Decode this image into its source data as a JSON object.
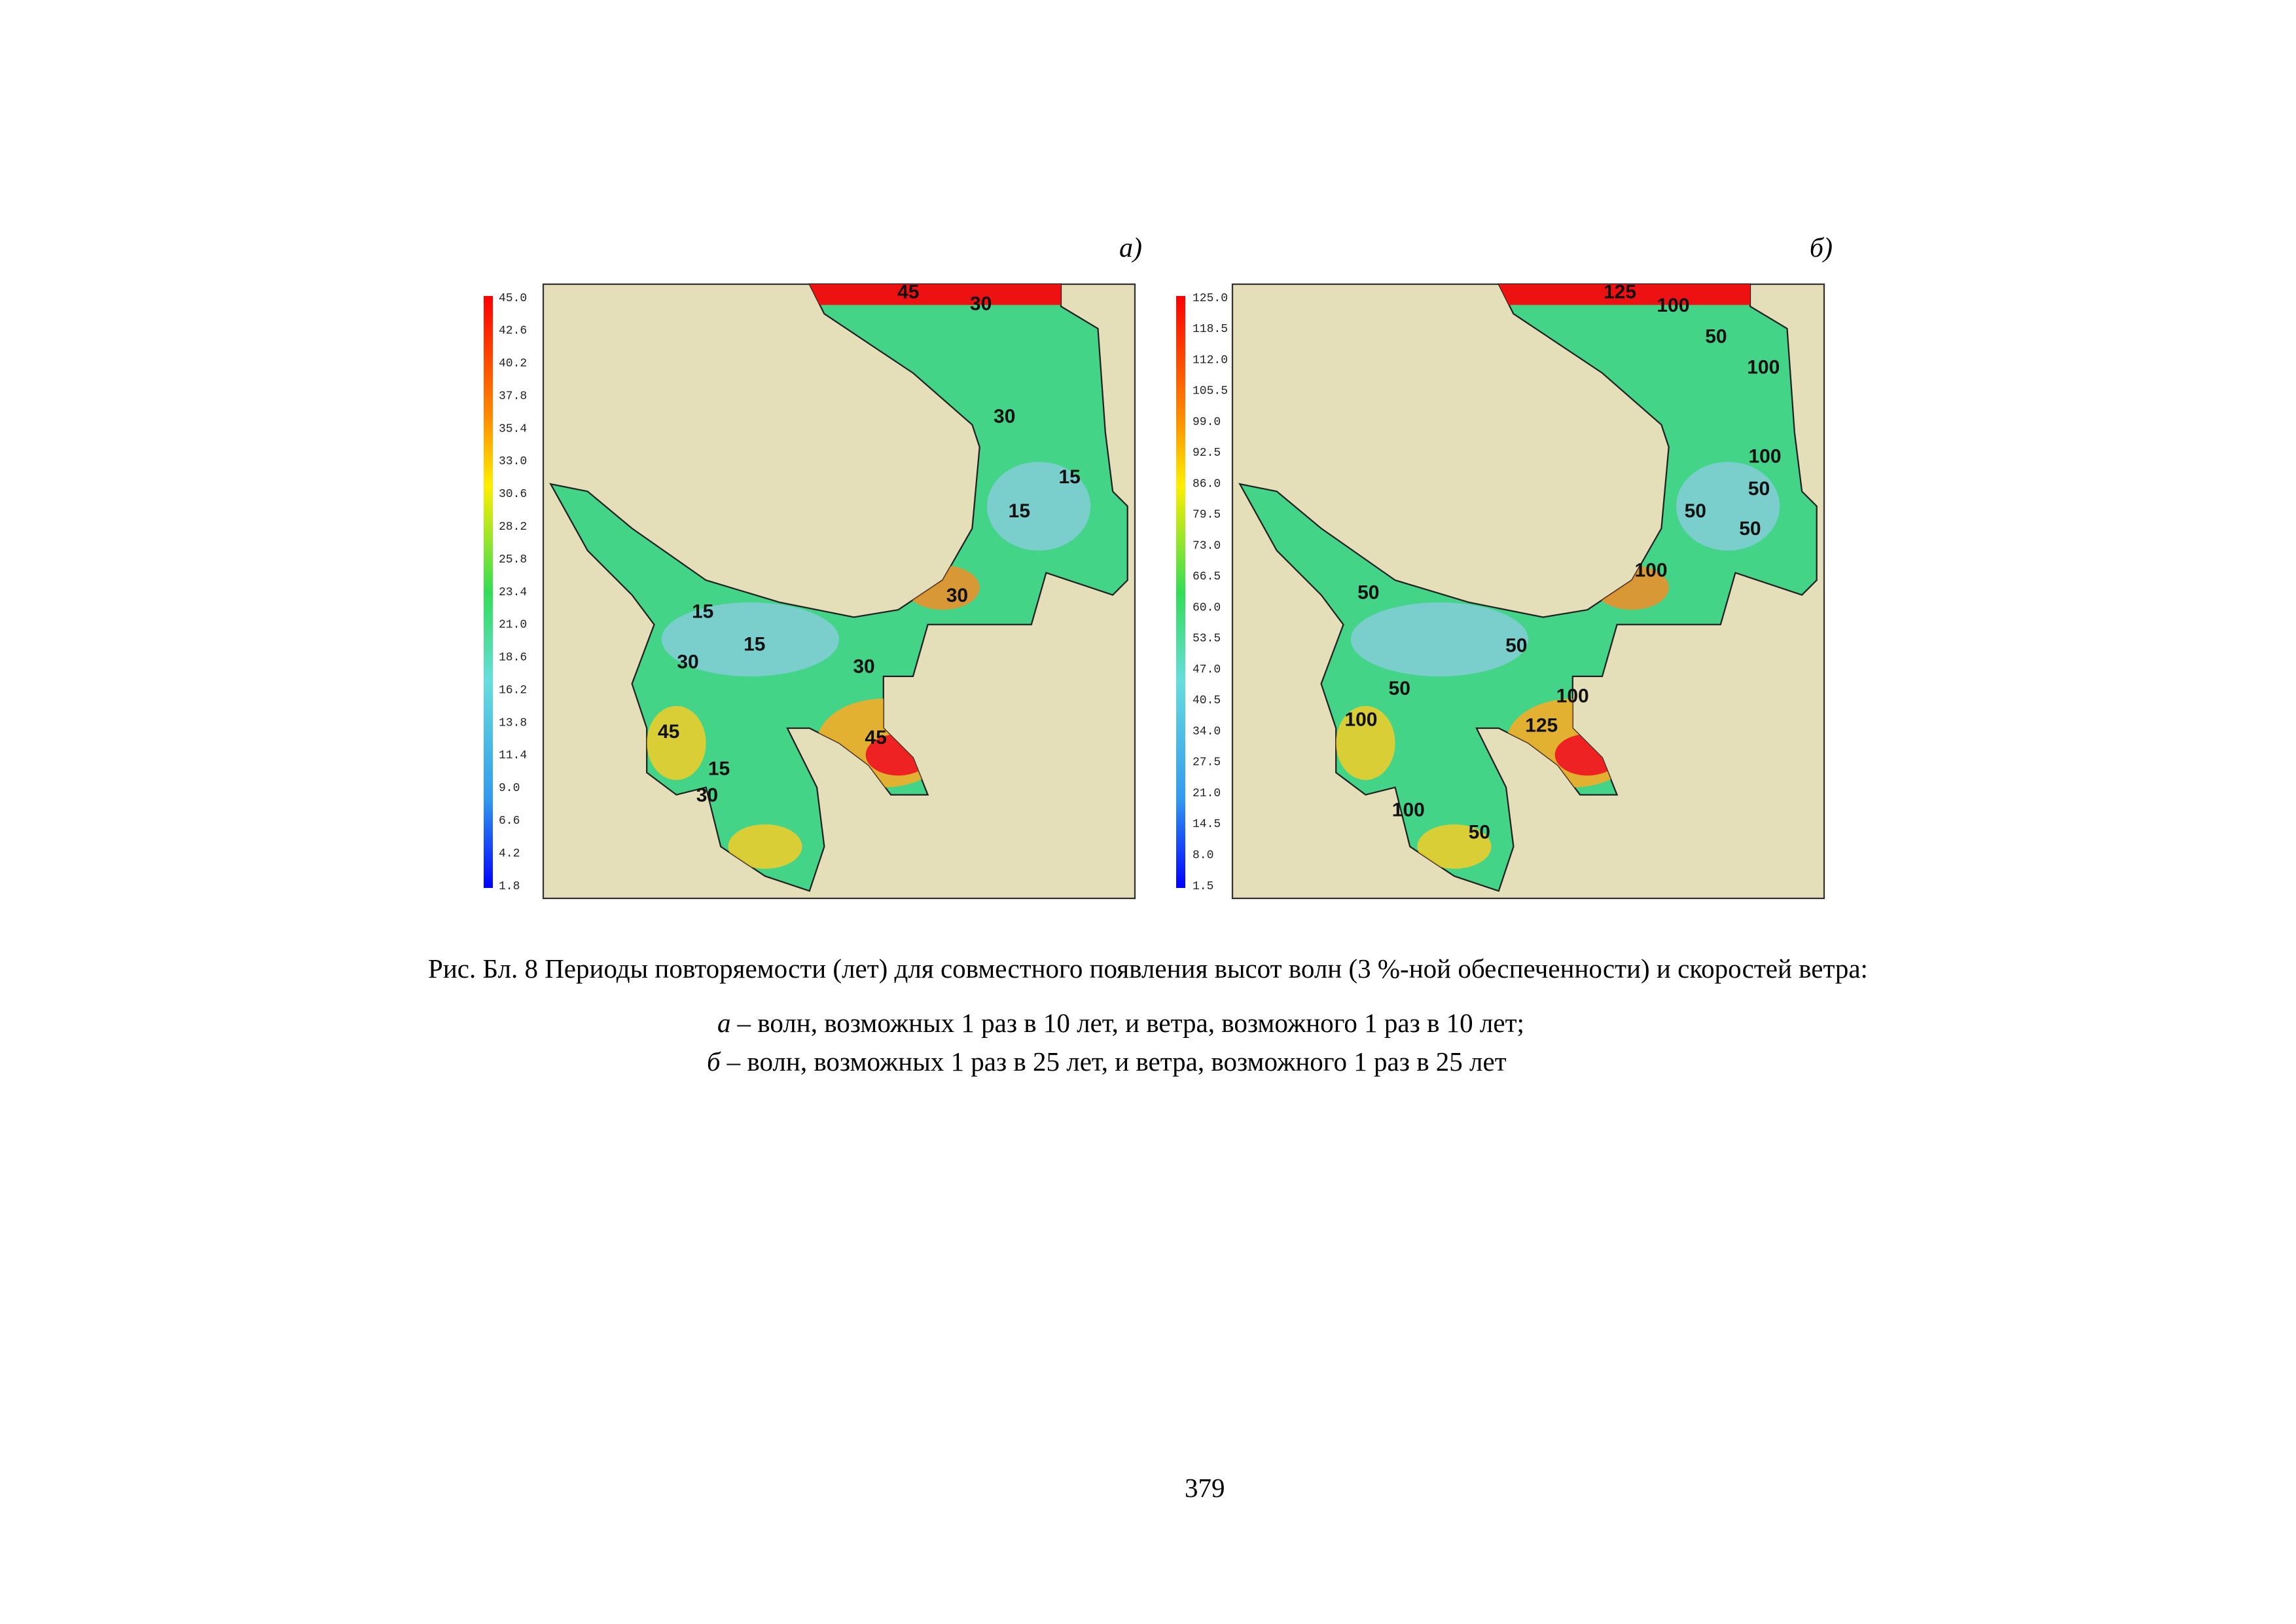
{
  "figure": {
    "panels": [
      {
        "label": "а)",
        "colorbar_ticks": [
          "45.0",
          "42.6",
          "40.2",
          "37.8",
          "35.4",
          "33.0",
          "30.6",
          "28.2",
          "25.8",
          "23.4",
          "21.0",
          "18.6",
          "16.2",
          "13.8",
          "11.4",
          "9.0",
          "6.6",
          "4.2",
          "1.8"
        ],
        "contour_labels": [
          "45",
          "30",
          "30",
          "15",
          "15",
          "30",
          "15",
          "15",
          "30",
          "30",
          "45",
          "45",
          "15",
          "30"
        ]
      },
      {
        "label": "б)",
        "colorbar_ticks": [
          "125.0",
          "118.5",
          "112.0",
          "105.5",
          "99.0",
          "92.5",
          "86.0",
          "79.5",
          "73.0",
          "66.5",
          "60.0",
          "53.5",
          "47.0",
          "40.5",
          "34.0",
          "27.5",
          "21.0",
          "14.5",
          "8.0",
          "1.5"
        ],
        "contour_labels": [
          "125",
          "100",
          "50",
          "100",
          "100",
          "50",
          "50",
          "50",
          "100",
          "50",
          "50",
          "100",
          "50",
          "125",
          "100",
          "100",
          "50"
        ]
      }
    ],
    "caption": {
      "title": "Рис. Бл. 8 Периоды повторяемости (лет) для совместного появления высот волн (3 %-ной обеспеченности) и скоростей ветра:",
      "items": [
        {
          "letter": "а",
          "text": "– волн, возможных 1 раз в 10 лет, и ветра, возможного 1 раз в 10 лет;"
        },
        {
          "letter": "б",
          "text": "– волн, возможных 1 раз в 25 лет, и ветра, возможного 1 раз в 25 лет"
        }
      ]
    }
  },
  "page_number": "379"
}
